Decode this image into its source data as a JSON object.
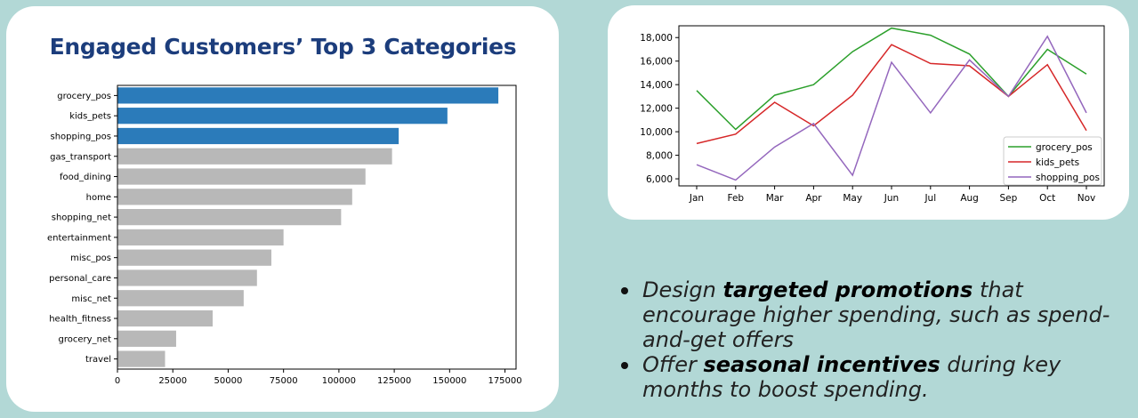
{
  "title": "Engaged Customers’ Top 3 Categories",
  "colors": {
    "highlight": "#2b7bba",
    "muted": "#b8b8b8",
    "grocery_pos": "#2ca02c",
    "kids_pets": "#d62728",
    "shopping_pos": "#9467bd"
  },
  "bullets": [
    {
      "pre": "Design ",
      "bold": "targeted promotions",
      "post": " that encourage higher spending, such as spend-and-get offers"
    },
    {
      "pre": "Offer ",
      "bold": "seasonal incentives",
      "post": " during key months to boost spending."
    }
  ],
  "chart_data": [
    {
      "type": "bar",
      "orientation": "horizontal",
      "title": "Engaged Customers’ Top 3 Categories",
      "categories": [
        "grocery_pos",
        "kids_pets",
        "shopping_pos",
        "gas_transport",
        "food_dining",
        "home",
        "shopping_net",
        "entertainment",
        "misc_pos",
        "personal_care",
        "misc_net",
        "health_fitness",
        "grocery_net",
        "travel"
      ],
      "values": [
        172000,
        149000,
        127000,
        124000,
        112000,
        106000,
        101000,
        75000,
        69500,
        63000,
        57000,
        43000,
        26500,
        21500
      ],
      "highlighted": [
        "grocery_pos",
        "kids_pets",
        "shopping_pos"
      ],
      "xlim": [
        0,
        180000
      ],
      "xticks": [
        0,
        25000,
        50000,
        75000,
        100000,
        125000,
        150000,
        175000
      ],
      "grid": false
    },
    {
      "type": "line",
      "x": [
        "Jan",
        "Feb",
        "Mar",
        "Apr",
        "May",
        "Jun",
        "Jul",
        "Aug",
        "Sep",
        "Oct",
        "Nov"
      ],
      "ylim": [
        5400,
        19000
      ],
      "yticks": [
        6000,
        8000,
        10000,
        12000,
        14000,
        16000,
        18000
      ],
      "ytick_labels": [
        "6,000",
        "8,000",
        "10,000",
        "12,000",
        "14,000",
        "16,000",
        "18,000"
      ],
      "legend_position": "lower-right",
      "grid": false,
      "series": [
        {
          "name": "grocery_pos",
          "color": "#2ca02c",
          "values": [
            13500,
            10200,
            13100,
            14000,
            16800,
            18800,
            18200,
            16600,
            13000,
            17000,
            14900
          ]
        },
        {
          "name": "kids_pets",
          "color": "#d62728",
          "values": [
            9000,
            9800,
            12500,
            10500,
            13100,
            17400,
            15800,
            15600,
            13000,
            15700,
            10100
          ]
        },
        {
          "name": "shopping_pos",
          "color": "#9467bd",
          "values": [
            7200,
            5900,
            8700,
            10700,
            6300,
            15900,
            11600,
            16100,
            13000,
            18100,
            11600
          ]
        }
      ]
    }
  ]
}
